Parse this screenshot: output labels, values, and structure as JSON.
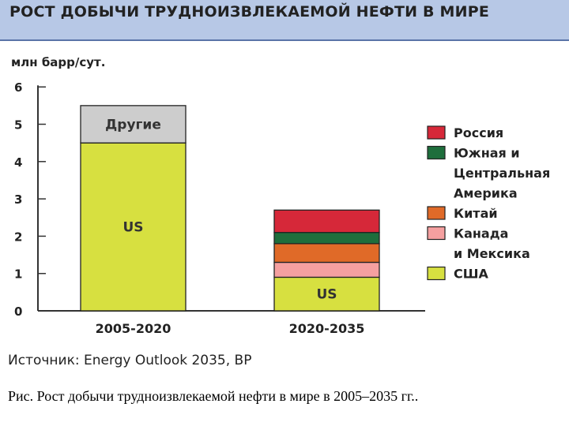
{
  "header": {
    "title": "РОСТ ДОБЫЧИ ТРУДНОИЗВЛЕКАЕМОЙ НЕФТИ В МИРЕ"
  },
  "chart_data": {
    "type": "bar",
    "stacked": true,
    "ylabel": "млн барр/сут.",
    "ylim": [
      0,
      6
    ],
    "yticks": [
      "0",
      "1",
      "2",
      "3",
      "4",
      "5",
      "6"
    ],
    "categories": [
      "2005-2020",
      "2020-2035"
    ],
    "series": [
      {
        "name": "США",
        "bar_label": "US",
        "color": "#d7e040",
        "values": [
          4.5,
          0.9
        ]
      },
      {
        "name": "Канада и Мексика",
        "color": "#f5a0a0",
        "values": [
          0,
          0.4
        ]
      },
      {
        "name": "Китай",
        "color": "#e06a28",
        "values": [
          0,
          0.5
        ]
      },
      {
        "name": "Южная и Центральная Америка",
        "color": "#1e6e3c",
        "values": [
          0,
          0.3
        ]
      },
      {
        "name": "Россия",
        "color": "#d62839",
        "values": [
          0,
          0.6
        ]
      },
      {
        "name": "Другие",
        "bar_label": "Другие",
        "color": "#cdcdcd",
        "values": [
          1.0,
          0
        ]
      }
    ],
    "legend": {
      "placement": "right",
      "entries": [
        {
          "lines": [
            "Россия"
          ],
          "color": "#d62839"
        },
        {
          "lines": [
            "Южная и",
            "Центральная",
            "Америка"
          ],
          "color": "#1e6e3c"
        },
        {
          "lines": [
            "Китай"
          ],
          "color": "#e06a28"
        },
        {
          "lines": [
            "Канада",
            "и Мексика"
          ],
          "color": "#f5a0a0"
        },
        {
          "lines": [
            "США"
          ],
          "color": "#d7e040"
        }
      ]
    },
    "grid": false
  },
  "source": "Источник: Energy Outlook 2035, BP",
  "caption": "Рис. Рост добычи трудноизвлекаемой нефти в мире в 2005–2035 гг.."
}
